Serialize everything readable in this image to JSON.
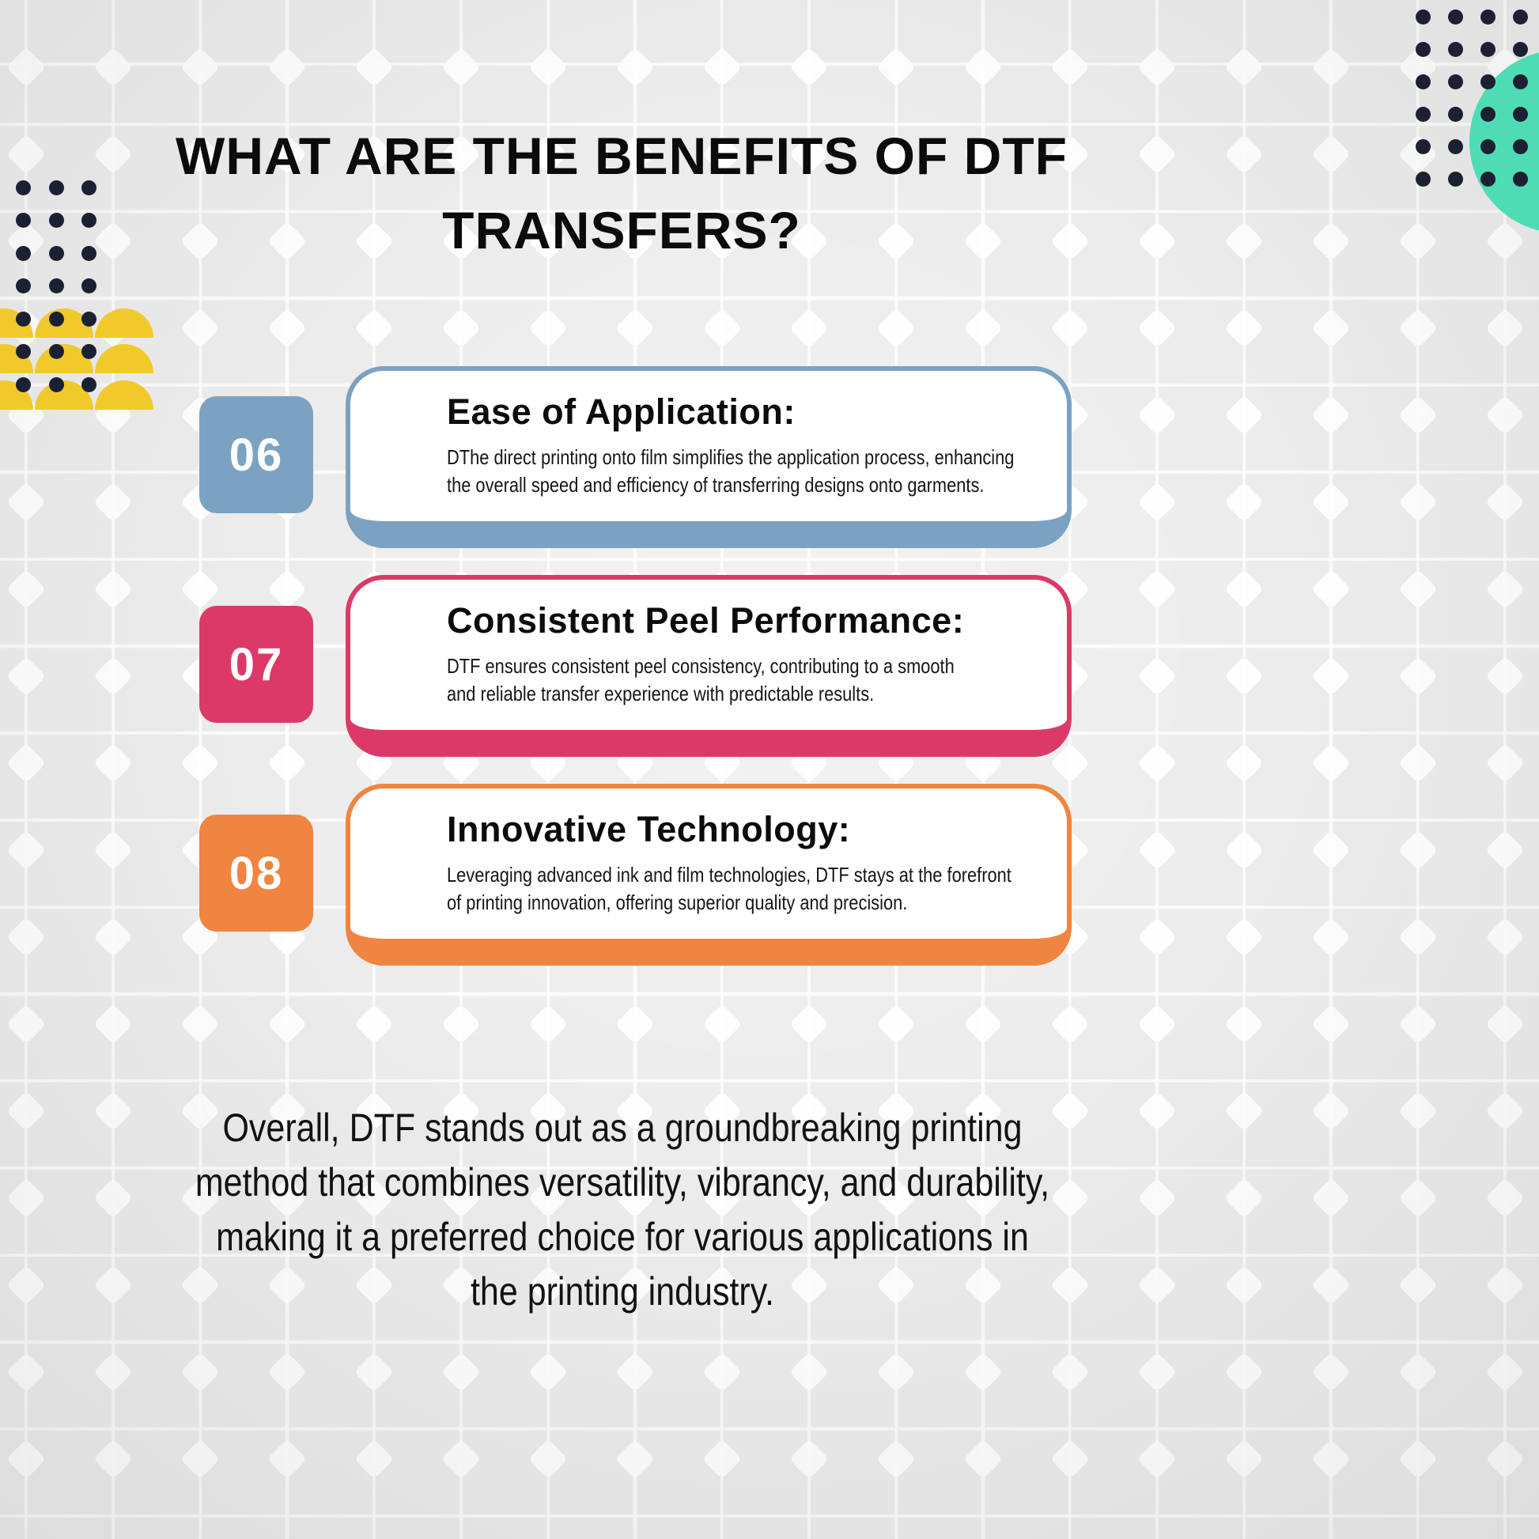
{
  "title": {
    "line1": "WHAT ARE THE BENEFITS OF DTF",
    "line2": "TRANSFERS?"
  },
  "cards": [
    {
      "number": "06",
      "accent_color": "#7CA2C2",
      "heading": "Ease of Application:",
      "body_lines": [
        "DThe direct printing onto film simplifies the application process, enhancing",
        "the overall speed and efficiency of transferring designs onto garments."
      ]
    },
    {
      "number": "07",
      "accent_color": "#DB3A68",
      "heading": "Consistent Peel Performance:",
      "body_lines": [
        "DTF ensures consistent peel consistency, contributing to a smooth",
        "and reliable transfer experience with predictable results."
      ]
    },
    {
      "number": "08",
      "accent_color": "#EF8540",
      "heading": "Innovative Technology:",
      "body_lines": [
        "Leveraging advanced ink and film technologies, DTF stays at the forefront",
        "of printing innovation, offering superior quality and precision."
      ]
    }
  ],
  "footer": {
    "lines": [
      "Overall, DTF stands out as a groundbreaking printing",
      "method that combines versatility, vibrancy, and durability,",
      "making it a preferred choice for various applications in",
      "the printing industry."
    ]
  },
  "colors": {
    "background": "#ECECEC",
    "grid_line": "#FFFFFF",
    "dots": "#1C2033",
    "teal_circle": "#4EDCB5",
    "yellow_scallop": "#F0CA2B",
    "card_06_accent": "#7CA2C2",
    "card_07_accent": "#DB3A68",
    "card_08_accent": "#EF8540",
    "text": "#101010"
  }
}
